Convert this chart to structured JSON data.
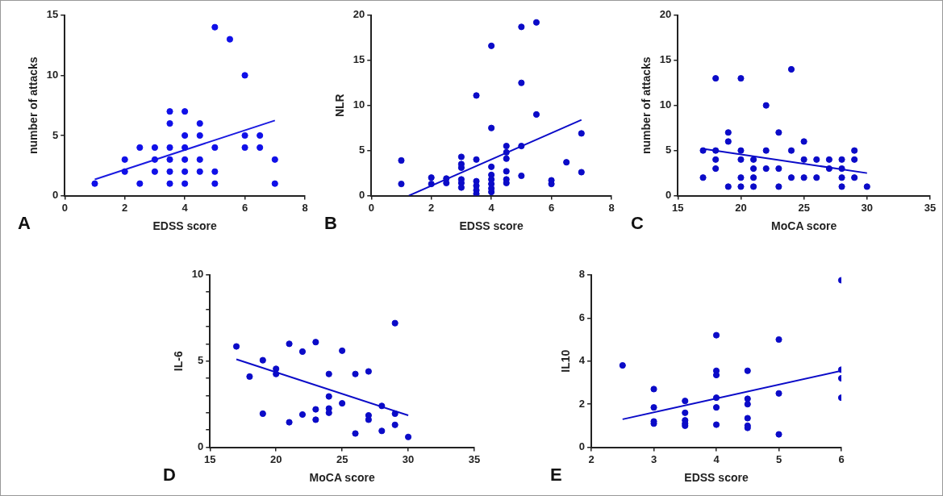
{
  "chart_data": [
    {
      "type": "scatter",
      "xlabel": "EDSS score",
      "ylabel": "number of attacks",
      "annotations": [
        "A"
      ],
      "xlim": [
        0,
        8
      ],
      "xticks": [
        0,
        2,
        4,
        6,
        8
      ],
      "ylim": [
        0,
        15
      ],
      "yticks": [
        0,
        5,
        10,
        15
      ],
      "grid": false,
      "legend": false,
      "series": [
        {
          "marker": "circle",
          "color": "#1010e8",
          "x": [
            1,
            2,
            2,
            2.5,
            2.5,
            3,
            3,
            3,
            3.5,
            3.5,
            3.5,
            3.5,
            3.5,
            3.5,
            4,
            4,
            4,
            4,
            4,
            4,
            4.5,
            4.5,
            4.5,
            4.5,
            5,
            5,
            5,
            5,
            5.5,
            6,
            6,
            6,
            6.5,
            6.5,
            7,
            7
          ],
          "values": [
            1,
            3,
            2,
            4,
            1,
            4,
            3,
            2,
            7,
            6,
            4,
            3,
            2,
            1,
            7,
            5,
            4,
            3,
            2,
            1,
            6,
            5,
            3,
            2,
            14,
            4,
            2,
            1,
            13,
            10,
            5,
            4,
            5,
            4,
            3,
            1
          ]
        },
        {
          "type": "line",
          "marker": "none",
          "color": "#1a1ae0",
          "line_style": "solid",
          "x": [
            1,
            7
          ],
          "values": [
            1.35,
            6.25
          ]
        }
      ]
    },
    {
      "type": "scatter",
      "xlabel": "EDSS score",
      "ylabel": "NLR",
      "annotations": [
        "B"
      ],
      "xlim": [
        0,
        8
      ],
      "xticks": [
        0,
        2,
        4,
        6,
        8
      ],
      "ylim": [
        0,
        20
      ],
      "yticks": [
        0,
        5,
        10,
        15,
        20
      ],
      "grid": false,
      "legend": false,
      "series": [
        {
          "marker": "circle",
          "color": "#0b0bc8",
          "x": [
            1,
            1,
            2,
            2,
            2.5,
            2.5,
            3,
            3,
            3,
            3,
            3,
            3,
            3.5,
            3.5,
            3.5,
            3.5,
            3.5,
            3.5,
            4,
            4,
            4,
            4,
            4,
            4,
            4,
            4,
            4.5,
            4.5,
            4.5,
            4.5,
            4.5,
            4.5,
            5,
            5,
            5,
            5,
            5.5,
            5.5,
            6,
            6,
            6.5,
            7,
            7
          ],
          "values": [
            3.9,
            1.3,
            2.0,
            1.3,
            1.9,
            1.4,
            4.3,
            3.5,
            3.1,
            1.8,
            1.4,
            0.9,
            11.1,
            4.0,
            1.6,
            1.1,
            0.6,
            0.2,
            16.6,
            7.5,
            3.2,
            2.3,
            1.8,
            1.3,
            0.8,
            0.4,
            5.5,
            4.8,
            4.1,
            2.7,
            1.8,
            1.4,
            18.7,
            12.5,
            5.5,
            2.2,
            19.2,
            9.0,
            1.7,
            1.3,
            3.7,
            6.9,
            2.6
          ]
        },
        {
          "type": "line",
          "marker": "none",
          "color": "#0b0bc8",
          "line_style": "solid",
          "x": [
            1.25,
            7
          ],
          "values": [
            0,
            8.4
          ]
        }
      ]
    },
    {
      "type": "scatter",
      "xlabel": "MoCA score",
      "ylabel": "number of attacks",
      "annotations": [
        "C"
      ],
      "xlim": [
        15,
        35
      ],
      "xticks": [
        15,
        20,
        25,
        30,
        35
      ],
      "ylim": [
        0,
        20
      ],
      "yticks": [
        0,
        5,
        10,
        15,
        20
      ],
      "grid": false,
      "legend": false,
      "series": [
        {
          "marker": "circle",
          "color": "#0b0bc8",
          "x": [
            17,
            17,
            18,
            18,
            18,
            18,
            19,
            19,
            19,
            20,
            20,
            20,
            20,
            20,
            21,
            21,
            21,
            21,
            22,
            22,
            22,
            23,
            23,
            23,
            24,
            24,
            24,
            25,
            25,
            25,
            26,
            26,
            27,
            27,
            28,
            28,
            28,
            28,
            29,
            29,
            29,
            30
          ],
          "values": [
            5,
            2,
            13,
            5,
            4,
            3,
            7,
            6,
            1,
            13,
            5,
            4,
            2,
            1,
            4,
            3,
            2,
            1,
            10,
            5,
            3,
            7,
            3,
            1,
            14,
            5,
            2,
            6,
            4,
            2,
            4,
            2,
            4,
            3,
            4,
            3,
            2,
            1,
            5,
            4,
            2,
            1
          ]
        },
        {
          "type": "line",
          "marker": "none",
          "color": "#0b0bc8",
          "line_style": "solid",
          "x": [
            17,
            30
          ],
          "values": [
            5.2,
            2.5
          ]
        }
      ]
    },
    {
      "type": "scatter",
      "xlabel": "MoCA score",
      "ylabel": "IL-6",
      "annotations": [
        "D"
      ],
      "xlim": [
        15,
        35
      ],
      "xticks": [
        15,
        20,
        25,
        30,
        35
      ],
      "ylim": [
        0,
        10
      ],
      "yticks": [
        0,
        {
          "value": 1,
          "label": null
        },
        {
          "value": 2,
          "label": null
        },
        {
          "value": 3,
          "label": null
        },
        {
          "value": 4,
          "label": null
        },
        5,
        {
          "value": 6,
          "label": null
        },
        {
          "value": 7,
          "label": null
        },
        {
          "value": 8,
          "label": null
        },
        {
          "value": 9,
          "label": null
        },
        10
      ],
      "grid": false,
      "legend": false,
      "series": [
        {
          "marker": "circle",
          "color": "#0b0bc8",
          "x": [
            17,
            18,
            19,
            19,
            20,
            20,
            21,
            21,
            22,
            22,
            23,
            23,
            23,
            24,
            24,
            24,
            24,
            25,
            25,
            26,
            26,
            27,
            27,
            27,
            28,
            28,
            29,
            29,
            29,
            30
          ],
          "values": [
            5.85,
            4.1,
            5.05,
            1.95,
            4.55,
            4.25,
            6.0,
            1.45,
            5.55,
            1.9,
            6.1,
            2.2,
            1.6,
            4.25,
            2.95,
            2.25,
            2.0,
            5.6,
            2.55,
            4.25,
            0.8,
            4.4,
            1.85,
            1.6,
            2.4,
            0.95,
            7.2,
            1.95,
            1.3,
            0.6
          ]
        },
        {
          "type": "line",
          "marker": "none",
          "color": "#0b0bc8",
          "line_style": "solid",
          "x": [
            17,
            30
          ],
          "values": [
            5.1,
            1.85
          ]
        }
      ]
    },
    {
      "type": "scatter",
      "xlabel": "EDSS score",
      "ylabel": "IL10",
      "annotations": [
        "E"
      ],
      "xlim": [
        2,
        6
      ],
      "xticks": [
        2,
        3,
        4,
        5,
        6
      ],
      "ylim": [
        0,
        8
      ],
      "yticks": [
        0,
        2,
        4,
        6,
        8
      ],
      "grid": false,
      "legend": false,
      "series": [
        {
          "marker": "circle",
          "color": "#0b0bc8",
          "x": [
            2.5,
            3,
            3,
            3,
            3,
            3.5,
            3.5,
            3.5,
            3.5,
            3.5,
            4,
            4,
            4,
            4,
            4,
            4,
            4.5,
            4.5,
            4.5,
            4.5,
            4.5,
            4.5,
            5,
            5,
            5,
            6,
            6,
            6,
            6
          ],
          "values": [
            3.8,
            2.7,
            1.85,
            1.2,
            1.1,
            2.15,
            1.6,
            1.25,
            1.1,
            1.0,
            5.2,
            3.55,
            3.35,
            2.3,
            1.85,
            1.05,
            3.55,
            2.25,
            2.0,
            1.35,
            1.0,
            0.9,
            5.0,
            2.5,
            0.6,
            7.75,
            3.6,
            3.2,
            2.3
          ]
        },
        {
          "type": "line",
          "marker": "none",
          "color": "#0b0bc8",
          "line_style": "solid",
          "x": [
            2.5,
            6
          ],
          "values": [
            1.3,
            3.55
          ]
        }
      ]
    }
  ]
}
